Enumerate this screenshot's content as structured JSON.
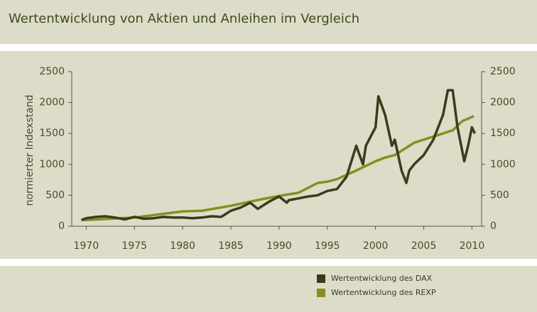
{
  "chart_data": {
    "type": "line",
    "title": "Wertentwicklung von Aktien und Anleihen im Vergleich",
    "ylabel": "normierter Indexstand",
    "xlim": [
      1968.5,
      2011
    ],
    "xticks": [
      1970,
      1975,
      1980,
      1985,
      1990,
      1995,
      2000,
      2005,
      2010
    ],
    "ylim": [
      0,
      2500
    ],
    "yticks": [
      0,
      500,
      1000,
      1500,
      2000,
      2500
    ],
    "y2lim": [
      0,
      2500
    ],
    "y2ticks": [
      0,
      500,
      1000,
      1500,
      2000,
      2500
    ],
    "grid": false,
    "series": [
      {
        "name": "Wertentwicklung des DAX",
        "color": "#3b3b1c",
        "x": [
          1969.5,
          1970,
          1971,
          1972,
          1973,
          1974,
          1975,
          1976,
          1977,
          1978,
          1979,
          1980,
          1981,
          1982,
          1983,
          1984,
          1985,
          1986,
          1987,
          1987.8,
          1988,
          1989,
          1990,
          1990.8,
          1991,
          1992,
          1993,
          1994,
          1995,
          1996,
          1997,
          1998,
          1998.7,
          1999,
          2000,
          2000.3,
          2001,
          2001.7,
          2002,
          2002.7,
          2003.2,
          2003.5,
          2004,
          2005,
          2006,
          2007,
          2007.5,
          2008,
          2008.5,
          2009.2,
          2009.6,
          2010,
          2010.3
        ],
        "values": [
          100,
          130,
          150,
          160,
          140,
          110,
          150,
          120,
          130,
          150,
          140,
          140,
          130,
          140,
          160,
          150,
          250,
          300,
          380,
          280,
          300,
          400,
          480,
          380,
          420,
          450,
          480,
          500,
          570,
          600,
          800,
          1300,
          1000,
          1300,
          1600,
          2100,
          1800,
          1300,
          1400,
          900,
          700,
          900,
          1000,
          1150,
          1400,
          1800,
          2200,
          2200,
          1600,
          1050,
          1300,
          1600,
          1500
        ]
      },
      {
        "name": "Wertentwicklung des REXP",
        "color": "#8a8c1e",
        "x": [
          1969.5,
          1970,
          1975,
          1980,
          1982,
          1985,
          1988,
          1990,
          1992,
          1994,
          1995,
          1996,
          1998,
          2000,
          2001,
          2002,
          2003,
          2004,
          2005,
          2006,
          2007,
          2008,
          2009,
          2010.2
        ],
        "values": [
          100,
          100,
          140,
          240,
          250,
          330,
          430,
          490,
          540,
          700,
          720,
          760,
          900,
          1050,
          1110,
          1150,
          1250,
          1350,
          1400,
          1450,
          1500,
          1550,
          1700,
          1780
        ]
      }
    ]
  }
}
